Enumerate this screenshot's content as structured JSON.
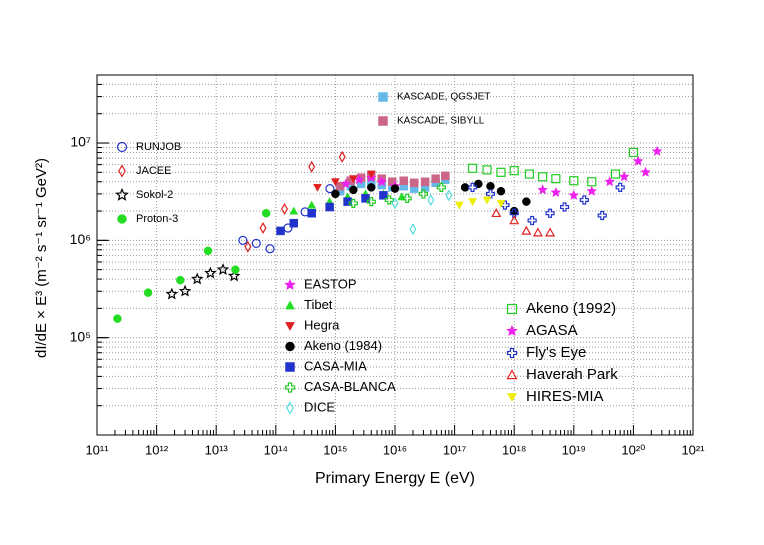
{
  "chart_data": {
    "type": "scatter",
    "xlabel": "Primary Energy E (eV)",
    "ylabel": "dI/dE × E³   (m⁻² s⁻¹ sr⁻¹ GeV²)",
    "xscale": "log",
    "yscale": "log",
    "grid": true,
    "xlim": [
      100000000000.0,
      1e+21
    ],
    "ylim": [
      10000.0,
      50000000.0
    ],
    "xticks": [
      {
        "value": 100000000000.0,
        "label": "10¹¹"
      },
      {
        "value": 1000000000000.0,
        "label": "10¹²"
      },
      {
        "value": 10000000000000.0,
        "label": "10¹³"
      },
      {
        "value": 100000000000000.0,
        "label": "10¹⁴"
      },
      {
        "value": 1000000000000000.0,
        "label": "10¹⁵"
      },
      {
        "value": 1e+16,
        "label": "10¹⁶"
      },
      {
        "value": 1e+17,
        "label": "10¹⁷"
      },
      {
        "value": 1e+18,
        "label": "10¹⁸"
      },
      {
        "value": 1e+19,
        "label": "10¹⁹"
      },
      {
        "value": 1e+20,
        "label": "10²⁰"
      },
      {
        "value": 1e+21,
        "label": "10²¹"
      }
    ],
    "yticks": [
      {
        "value": 100000.0,
        "label": "10⁵"
      },
      {
        "value": 1000000.0,
        "label": "10⁶"
      },
      {
        "value": 10000000.0,
        "label": "10⁷"
      }
    ],
    "series": [
      {
        "name": "RUNJOB",
        "color": "#2233cc",
        "marker": "circle-open",
        "x": [
          28000000000000.0,
          47000000000000.0,
          80000000000000.0,
          160000000000000.0,
          310000000000000.0,
          810000000000000.0
        ],
        "values": [
          1000000.0,
          930000.0,
          820000.0,
          1340000.0,
          1960000.0,
          3400000.0
        ]
      },
      {
        "name": "JACEE",
        "color": "#e02020",
        "marker": "diamond-open",
        "x": [
          34000000000000.0,
          61000000000000.0,
          140000000000000.0,
          400000000000000.0,
          1300000000000000.0
        ],
        "values": [
          860000.0,
          1340000.0,
          2100000.0,
          5700000.0,
          7200000.0
        ]
      },
      {
        "name": "Sokol-2",
        "color": "#000000",
        "marker": "star-open",
        "x": [
          1800000000000.0,
          3000000000000.0,
          4800000000000.0,
          8000000000000.0,
          13000000000000.0,
          20000000000000.0
        ],
        "values": [
          280000.0,
          300000.0,
          400000.0,
          460000.0,
          500000.0,
          430000.0
        ]
      },
      {
        "name": "Proton-3",
        "color": "#22dd22",
        "marker": "circle",
        "x": [
          220000000000.0,
          720000000000.0,
          2500000000000.0,
          7300000000000.0,
          21000000000000.0,
          69000000000000.0
        ],
        "values": [
          157000.0,
          290000.0,
          390000.0,
          780000.0,
          500000.0,
          1900000.0
        ]
      },
      {
        "name": "KASCADE, QGSJET",
        "color": "#66b8e8",
        "marker": "square",
        "x": [
          1200000000000000.0,
          1800000000000000.0,
          2700000000000000.0,
          4000000000000000.0,
          6000000000000000.0,
          9000000000000000.0,
          1.4e+16,
          2.1e+16,
          3.2e+16,
          4.8e+16,
          7e+16
        ],
        "values": [
          3200000.0,
          3600000.0,
          3800000.0,
          3900000.0,
          3700000.0,
          3500000.0,
          3600000.0,
          3400000.0,
          3500000.0,
          3900000.0,
          4200000.0
        ]
      },
      {
        "name": "KASCADE, SIBYLL",
        "color": "#cc6688",
        "marker": "square",
        "x": [
          1200000000000000.0,
          1800000000000000.0,
          2700000000000000.0,
          4000000000000000.0,
          6000000000000000.0,
          9000000000000000.0,
          1.4e+16,
          2.1e+16,
          3.2e+16,
          4.8e+16,
          7e+16
        ],
        "values": [
          3600000.0,
          4100000.0,
          4400000.0,
          4600000.0,
          4300000.0,
          4000000.0,
          4100000.0,
          3900000.0,
          4000000.0,
          4300000.0,
          4600000.0
        ]
      },
      {
        "name": "EASTOP",
        "color": "#ee22ee",
        "marker": "star",
        "x": [
          1500000000000000.0,
          2500000000000000.0,
          4000000000000000.0,
          6000000000000000.0,
          1e+16
        ],
        "values": [
          3800000.0,
          4200000.0,
          4400000.0,
          4000000.0,
          3600000.0
        ]
      },
      {
        "name": "Tibet",
        "color": "#22dd22",
        "marker": "triangle",
        "x": [
          200000000000000.0,
          400000000000000.0,
          800000000000000.0,
          1600000000000000.0,
          3200000000000000.0,
          6400000000000000.0,
          1.3e+16
        ],
        "values": [
          2000000.0,
          2300000.0,
          2500000.0,
          2800000.0,
          3000000.0,
          3000000.0,
          2800000.0
        ]
      },
      {
        "name": "Hegra",
        "color": "#e02020",
        "marker": "triangle-down",
        "x": [
          500000000000000.0,
          1000000000000000.0,
          2000000000000000.0,
          4000000000000000.0
        ],
        "values": [
          3500000.0,
          4000000.0,
          4300000.0,
          4800000.0
        ]
      },
      {
        "name": "Akeno (1984)",
        "color": "#000000",
        "marker": "circle",
        "x": [
          1000000000000000.0,
          2000000000000000.0,
          4000000000000000.0,
          1e+16,
          1.5e+17,
          2.5e+17,
          4e+17,
          6e+17,
          1e+18,
          1.6e+18
        ],
        "values": [
          3000000.0,
          3300000.0,
          3500000.0,
          3400000.0,
          3500000.0,
          3800000.0,
          3600000.0,
          3200000.0,
          2000000.0,
          2500000.0
        ]
      },
      {
        "name": "CASA-MIA",
        "color": "#2233cc",
        "marker": "square",
        "x": [
          120000000000000.0,
          200000000000000.0,
          400000000000000.0,
          800000000000000.0,
          1600000000000000.0,
          3200000000000000.0,
          6400000000000000.0
        ],
        "values": [
          1250000.0,
          1500000.0,
          1900000.0,
          2200000.0,
          2500000.0,
          2700000.0,
          2900000.0
        ]
      },
      {
        "name": "CASA-BLANCA",
        "color": "#22cc22",
        "marker": "cross-open",
        "x": [
          2000000000000000.0,
          4000000000000000.0,
          8000000000000000.0,
          1.6e+16,
          3e+16,
          6e+16
        ],
        "values": [
          2400000.0,
          2500000.0,
          2600000.0,
          2700000.0,
          3000000.0,
          3500000.0
        ]
      },
      {
        "name": "DICE",
        "color": "#55dddd",
        "marker": "diamond-open",
        "x": [
          1e+16,
          2e+16,
          4e+16,
          8e+16
        ],
        "values": [
          2400000.0,
          1300000.0,
          2600000.0,
          2900000.0
        ]
      },
      {
        "name": "Akeno (1992)",
        "color": "#22cc22",
        "marker": "square-open",
        "x": [
          2e+17,
          3.5e+17,
          6e+17,
          1e+18,
          1.8e+18,
          3e+18,
          5e+18,
          1e+19,
          2e+19,
          5e+19,
          1e+20
        ],
        "values": [
          5500000.0,
          5300000.0,
          5000000.0,
          5200000.0,
          4800000.0,
          4500000.0,
          4300000.0,
          4100000.0,
          4000000.0,
          4800000.0,
          8000000.0
        ]
      },
      {
        "name": "AGASA",
        "color": "#ee22ee",
        "marker": "star",
        "x": [
          3e+18,
          5e+18,
          1e+19,
          2e+19,
          4e+19,
          7e+19,
          1.2e+20,
          1.6e+20,
          2.5e+20
        ],
        "values": [
          3300000.0,
          3100000.0,
          2900000.0,
          3200000.0,
          4000000.0,
          4500000.0,
          6500000.0,
          5000000.0,
          8200000.0
        ]
      },
      {
        "name": "Fly's Eye",
        "color": "#2233cc",
        "marker": "cross-open",
        "x": [
          2e+17,
          4e+17,
          7e+17,
          1e+18,
          2e+18,
          4e+18,
          7e+18,
          1.5e+19,
          3e+19,
          6e+19
        ],
        "values": [
          3500000.0,
          3000000.0,
          2300000.0,
          1900000.0,
          1600000.0,
          1900000.0,
          2200000.0,
          2600000.0,
          1800000.0,
          3500000.0
        ]
      },
      {
        "name": "Haverah Park",
        "color": "#e02020",
        "marker": "triangle-open",
        "x": [
          5e+17,
          1e+18,
          1.6e+18,
          2.5e+18,
          4e+18
        ],
        "values": [
          1900000.0,
          1600000.0,
          1250000.0,
          1200000.0,
          1200000.0
        ]
      },
      {
        "name": "HIRES-MIA",
        "color": "#eeee00",
        "marker": "triangle-down",
        "x": [
          1.2e+17,
          2e+17,
          3.5e+17,
          6e+17
        ],
        "values": [
          2300000.0,
          2500000.0,
          2600000.0,
          2400000.0
        ]
      }
    ]
  }
}
